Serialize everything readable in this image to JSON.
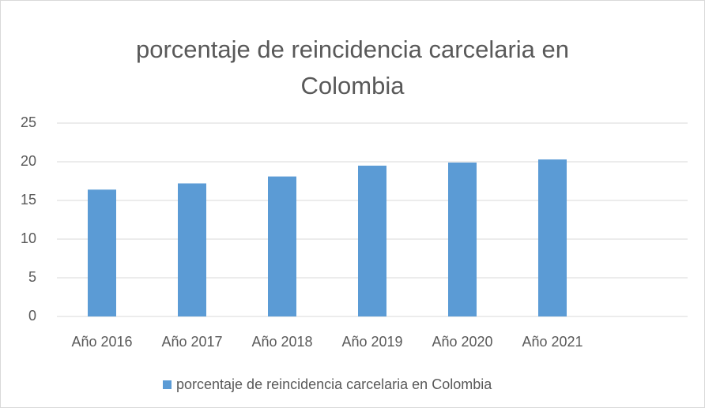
{
  "chart_data": {
    "type": "bar",
    "title": "porcentaje de reincidencia  carcelaria en Colombia",
    "categories": [
      "Año 2016",
      "Año 2017",
      "Año 2018",
      "Año 2019",
      "Año 2020",
      "Año 2021",
      null
    ],
    "series": [
      {
        "name": "porcentaje de reincidencia  carcelaria en Colombia",
        "color": "#5b9bd5",
        "values": [
          16.4,
          17.2,
          18.1,
          19.5,
          19.9,
          20.3,
          null
        ]
      }
    ],
    "ylim": [
      0,
      25
    ],
    "yticks": [
      0,
      5,
      10,
      15,
      20,
      25
    ],
    "grid": true,
    "legend": "bottom"
  }
}
